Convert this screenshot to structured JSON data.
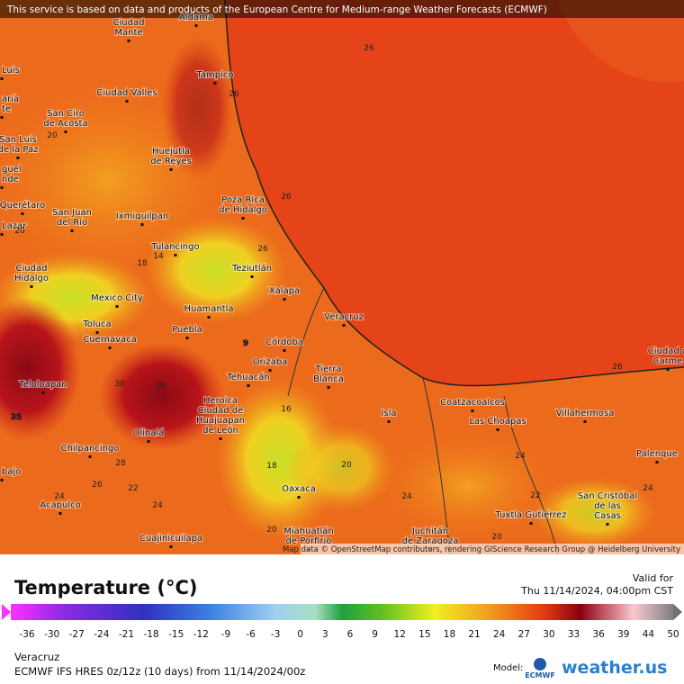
{
  "header": {
    "notice": "This service is based on data and products of the European Centre for Medium-range Weather Forecasts (ECMWF)"
  },
  "map": {
    "places": [
      {
        "lines": [
          "Aldama"
        ]
      },
      {
        "lines": [
          "Ciudad",
          "Mante"
        ]
      },
      {
        "lines": [
          "Tampico"
        ]
      },
      {
        "lines": [
          "Ciudad Valles"
        ]
      },
      {
        "lines": [
          "San Ciro",
          "de Acosta"
        ]
      },
      {
        "lines": [
          "Luis"
        ]
      },
      {
        "lines": [
          "aría",
          "te"
        ]
      },
      {
        "lines": [
          "Huejutla",
          "de Reyes"
        ]
      },
      {
        "lines": [
          "San Luis",
          "de la Paz"
        ]
      },
      {
        "lines": [
          "guel",
          "nde"
        ]
      },
      {
        "lines": [
          "Poza Rica",
          "de Hidalgo"
        ]
      },
      {
        "lines": [
          "Querétaro"
        ]
      },
      {
        "lines": [
          "San Juan",
          "del Río"
        ]
      },
      {
        "lines": [
          "Ixmiquilpan"
        ]
      },
      {
        "lines": [
          "Tulancingo"
        ]
      },
      {
        "lines": [
          "Ciudad",
          "Hidalgo"
        ]
      },
      {
        "lines": [
          "Teziutlán"
        ]
      },
      {
        "lines": [
          "Xalapa"
        ]
      },
      {
        "lines": [
          "Mexico City"
        ]
      },
      {
        "lines": [
          "Huamantla"
        ]
      },
      {
        "lines": [
          "Veracruz"
        ]
      },
      {
        "lines": [
          "Toluca"
        ]
      },
      {
        "lines": [
          "Puebla"
        ]
      },
      {
        "lines": [
          "Cuernavaca"
        ]
      },
      {
        "lines": [
          "Córdoba"
        ]
      },
      {
        "lines": [
          "Orizaba"
        ]
      },
      {
        "lines": [
          "Tehuacán"
        ]
      },
      {
        "lines": [
          "Tierra",
          "Blanca"
        ]
      },
      {
        "lines": [
          "Teloloapan"
        ]
      },
      {
        "lines": [
          "Heroica",
          "Ciudad de",
          "Huajuapan",
          "de León"
        ]
      },
      {
        "lines": [
          "Coatzacoalcos"
        ]
      },
      {
        "lines": [
          "Isla"
        ]
      },
      {
        "lines": [
          "Las Choapas"
        ]
      },
      {
        "lines": [
          "Villahermosa"
        ]
      },
      {
        "lines": [
          "Ciudad d",
          "Carme"
        ]
      },
      {
        "lines": [
          "Olinalá"
        ]
      },
      {
        "lines": [
          "Chilpancingo"
        ]
      },
      {
        "lines": [
          "Palenque"
        ]
      },
      {
        "lines": [
          "Oaxaca"
        ]
      },
      {
        "lines": [
          "Acapulco"
        ]
      },
      {
        "lines": [
          "San Cristóbal",
          "de las",
          "Casas"
        ]
      },
      {
        "lines": [
          "Tuxtla Gutiérrez"
        ]
      },
      {
        "lines": [
          "Cuajinicuilapa"
        ]
      },
      {
        "lines": [
          "Miahuatlán",
          "de Porfirio"
        ]
      },
      {
        "lines": [
          "Juchitán",
          "de Zaragoza"
        ]
      },
      {
        "lines": [
          "Lazar"
        ]
      },
      {
        "lines": [
          "bajo"
        ]
      }
    ],
    "contour_labels": [
      26,
      26,
      20,
      26,
      26,
      18,
      14,
      26,
      9,
      16,
      35,
      30,
      28,
      28,
      26,
      22,
      24,
      24,
      20,
      18,
      24,
      24,
      22,
      24,
      20,
      20,
      20
    ],
    "attribution": "Map data © OpenStreetMap contributors, rendering GIScience Research Group @ Heidelberg University"
  },
  "legend": {
    "title": "Temperature (°C)",
    "ticks": [
      -36,
      -30,
      -27,
      -24,
      -21,
      -18,
      -15,
      -12,
      -9,
      -6,
      -3,
      0,
      3,
      6,
      9,
      12,
      15,
      18,
      21,
      24,
      27,
      30,
      33,
      36,
      39,
      44,
      50
    ]
  },
  "valid": {
    "label": "Valid for",
    "time": "Thu 11/14/2024, 04:00pm CST"
  },
  "info": {
    "location": "Veracruz",
    "model_run": "ECMWF IFS HRES 0z/12z (10 days) from 11/14/2024/00z"
  },
  "branding": {
    "model_label": "Model:",
    "model": "ECMWF",
    "site": "weather.us"
  }
}
